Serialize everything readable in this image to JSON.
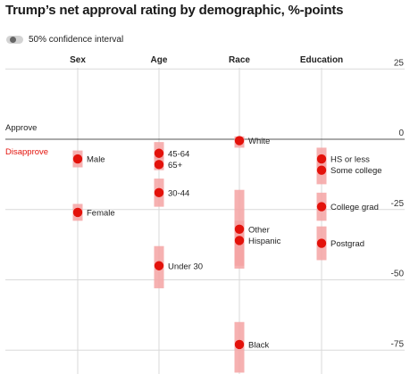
{
  "title": "Trump’s net approval rating by demographic, %-points",
  "legend": {
    "label": "50% confidence interval"
  },
  "chart_data": {
    "type": "scatter",
    "title": "Trump’s net approval rating by demographic, %-points",
    "categories": [
      "Sex",
      "Age",
      "Race",
      "Education"
    ],
    "ylim": [
      -82,
      27
    ],
    "yticks": [
      25,
      0,
      -25,
      -50,
      -75
    ],
    "annotations": {
      "approve": "Approve",
      "disapprove": "Disapprove"
    },
    "grid": true,
    "legend_position": "top-left",
    "colors": {
      "dot": "#e3120b",
      "interval": "#f5a3a3",
      "disapprove": "#e3120b",
      "zero_line": "#555555",
      "grid": "#d9d9d9"
    },
    "series": [
      {
        "group": "Sex",
        "label": "Male",
        "value": -7,
        "low": -10,
        "high": -4
      },
      {
        "group": "Sex",
        "label": "Female",
        "value": -26,
        "low": -29,
        "high": -23
      },
      {
        "group": "Age",
        "label": "45-64",
        "value": -5,
        "low": -7,
        "high": -1
      },
      {
        "group": "Age",
        "label": "65+",
        "value": -9,
        "low": -11,
        "high": -6
      },
      {
        "group": "Age",
        "label": "30-44",
        "value": -19,
        "low": -24,
        "high": -14
      },
      {
        "group": "Age",
        "label": "Under 30",
        "value": -45,
        "low": -53,
        "high": -38
      },
      {
        "group": "Race",
        "label": "White",
        "value": -0.5,
        "low": -3,
        "high": 1
      },
      {
        "group": "Race",
        "label": "Other",
        "value": -32,
        "low": -46,
        "high": -18
      },
      {
        "group": "Race",
        "label": "Hispanic",
        "value": -36,
        "low": -45,
        "high": -29
      },
      {
        "group": "Race",
        "label": "Black",
        "value": -73,
        "low": -83,
        "high": -65
      },
      {
        "group": "Education",
        "label": "HS or less",
        "value": -7,
        "low": -11,
        "high": -3
      },
      {
        "group": "Education",
        "label": "Some college",
        "value": -11,
        "low": -16,
        "high": -7
      },
      {
        "group": "Education",
        "label": "College grad",
        "value": -24,
        "low": -29,
        "high": -19
      },
      {
        "group": "Education",
        "label": "Postgrad",
        "value": -37,
        "low": -43,
        "high": -31
      }
    ]
  }
}
